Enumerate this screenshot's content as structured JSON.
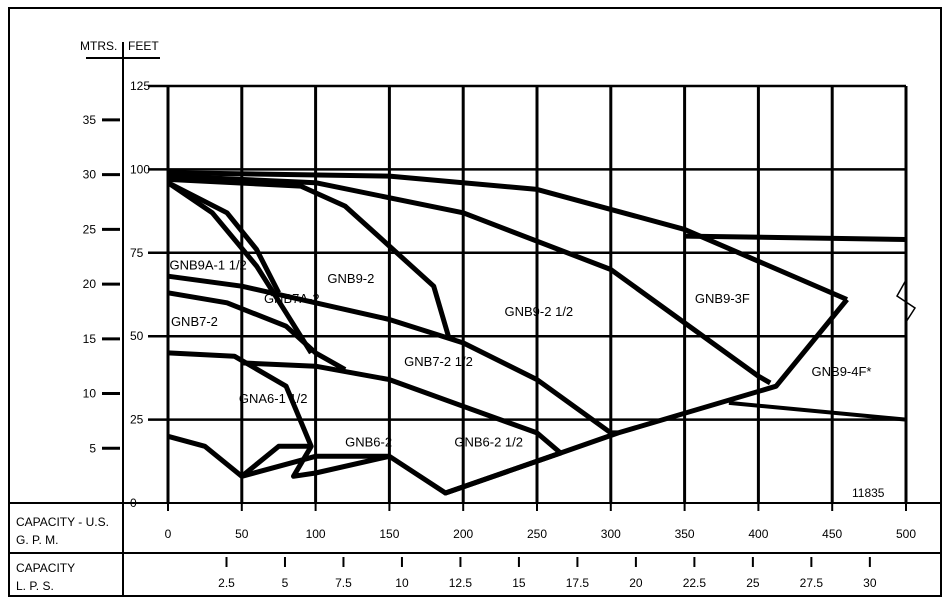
{
  "chart_data": {
    "type": "line",
    "axes": {
      "feet_axis_label": "FEET",
      "meters_axis_label": "MTRS.",
      "feet_ticks": [
        "0",
        "25",
        "50",
        "75",
        "100",
        "125"
      ],
      "meters_ticks": [
        "5",
        "10",
        "15",
        "20",
        "25",
        "30",
        "35"
      ],
      "gpm_label_lines": [
        "CAPACITY - U.S.",
        "G. P. M."
      ],
      "gpm_ticks": [
        "0",
        "50",
        "100",
        "150",
        "200",
        "250",
        "300",
        "350",
        "400",
        "450",
        "500"
      ],
      "lps_label_lines": [
        "CAPACITY",
        "L. P. S."
      ],
      "lps_ticks": [
        "2.5",
        "5",
        "7.5",
        "10",
        "12.5",
        "15",
        "17.5",
        "20",
        "22.5",
        "25",
        "27.5",
        "30"
      ],
      "xlim": [
        0,
        500
      ],
      "ylim": [
        0,
        125
      ]
    },
    "reference_number": "11835",
    "series": [
      {
        "name": "GNA6-1 1/2",
        "points": [
          [
            0,
            20
          ],
          [
            25,
            17
          ],
          [
            50,
            8
          ],
          [
            75,
            17
          ],
          [
            97,
            17
          ]
        ],
        "label_at": [
          48,
          30
        ]
      },
      {
        "name": "GNB6-2",
        "points": [
          [
            0,
            45
          ],
          [
            45,
            44
          ],
          [
            80,
            35
          ],
          [
            97,
            17
          ],
          [
            85,
            8
          ],
          [
            100,
            9
          ],
          [
            150,
            14
          ]
        ],
        "label_at": [
          120,
          17
        ]
      },
      {
        "name": "GNB6-2 1/2",
        "points": [
          [
            50,
            42
          ],
          [
            100,
            41
          ],
          [
            150,
            37
          ],
          [
            200,
            29
          ],
          [
            250,
            21
          ],
          [
            266,
            15
          ],
          [
            188,
            3
          ],
          [
            266,
            15
          ]
        ],
        "label_at": [
          194,
          17
        ]
      },
      {
        "name": "GNB7-2",
        "points": [
          [
            0,
            63
          ],
          [
            40,
            60
          ],
          [
            80,
            53
          ],
          [
            100,
            45
          ],
          [
            120,
            40
          ]
        ],
        "label_at": [
          2,
          53
        ]
      },
      {
        "name": "GNB7A-2",
        "points": [
          [
            0,
            96
          ],
          [
            30,
            87
          ],
          [
            60,
            71
          ],
          [
            80,
            57
          ],
          [
            97,
            45
          ]
        ],
        "label_at": [
          65,
          60
        ]
      },
      {
        "name": "GNB7-2 1/2",
        "points": [
          [
            0,
            68
          ],
          [
            50,
            65
          ],
          [
            100,
            60
          ],
          [
            150,
            55
          ],
          [
            200,
            48
          ],
          [
            250,
            37
          ],
          [
            300,
            21
          ],
          [
            305,
            21
          ]
        ],
        "label_at": [
          160,
          41
        ]
      },
      {
        "name": "GNB9A-1 1/2",
        "points": [
          [
            0,
            96
          ],
          [
            40,
            87
          ],
          [
            60,
            76
          ],
          [
            75,
            63
          ]
        ],
        "label_at": [
          1,
          70
        ]
      },
      {
        "name": "GNB9-2",
        "points": [
          [
            0,
            97
          ],
          [
            90,
            95
          ],
          [
            120,
            89
          ],
          [
            150,
            77
          ],
          [
            180,
            65
          ],
          [
            190,
            50
          ]
        ],
        "label_at": [
          108,
          66
        ]
      },
      {
        "name": "GNB9-2 1/2",
        "points": [
          [
            0,
            98
          ],
          [
            100,
            96
          ],
          [
            200,
            87
          ],
          [
            300,
            70
          ],
          [
            400,
            38
          ],
          [
            408,
            36
          ]
        ],
        "label_at": [
          228,
          56
        ]
      },
      {
        "name": "GNB9-3F",
        "points": [
          [
            0,
            99
          ],
          [
            150,
            98
          ],
          [
            250,
            94
          ],
          [
            350,
            82
          ],
          [
            460,
            61
          ]
        ],
        "label_at": [
          357,
          60
        ]
      },
      {
        "name": "GNB9-4F*",
        "points": [
          [
            350,
            80
          ],
          [
            500,
            79
          ]
        ],
        "label_at": [
          436,
          38
        ]
      }
    ],
    "envelope": {
      "points": [
        [
          50,
          8
        ],
        [
          100,
          14
        ],
        [
          150,
          14
        ],
        [
          188,
          3
        ],
        [
          266,
          15
        ],
        [
          305,
          21
        ],
        [
          412,
          35
        ],
        [
          460,
          61
        ]
      ]
    },
    "lower_limit": {
      "points": [
        [
          380,
          30
        ],
        [
          500,
          25
        ]
      ]
    }
  }
}
